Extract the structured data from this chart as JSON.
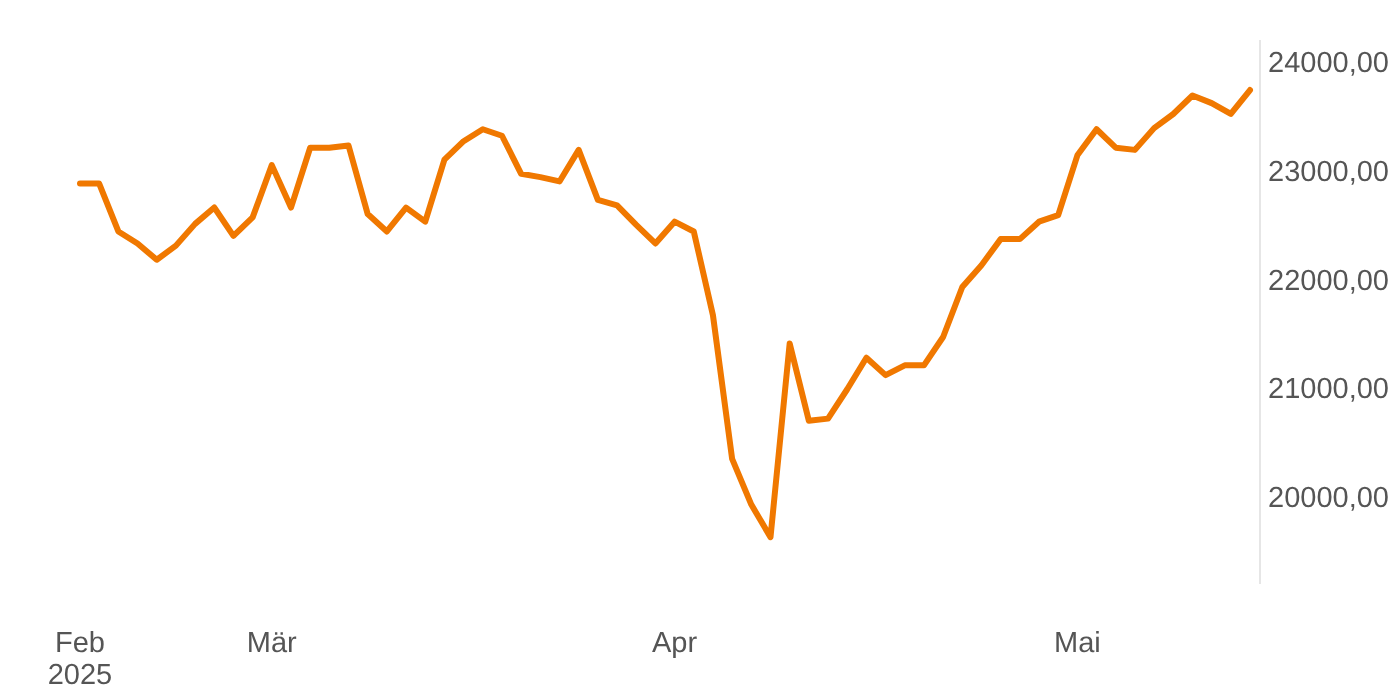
{
  "chart_data": {
    "type": "line",
    "categories": [
      "Feb\n2025",
      null,
      null,
      null,
      null,
      null,
      null,
      null,
      null,
      null,
      "Mär",
      null,
      null,
      null,
      null,
      null,
      null,
      null,
      null,
      null,
      null,
      null,
      null,
      null,
      null,
      null,
      null,
      null,
      null,
      null,
      null,
      "Apr",
      null,
      null,
      null,
      null,
      null,
      null,
      null,
      null,
      null,
      null,
      null,
      null,
      null,
      null,
      null,
      null,
      null,
      null,
      null,
      null,
      "Mai",
      null,
      null,
      null,
      null,
      null,
      null,
      null,
      null,
      null
    ],
    "series": [
      {
        "color": "#f07800",
        "values": [
          22880,
          22880,
          22440,
          22330,
          22180,
          22310,
          22510,
          22660,
          22400,
          22570,
          23050,
          22660,
          23210,
          23210,
          23230,
          22600,
          22440,
          22660,
          22530,
          23100,
          23270,
          23380,
          23320,
          22970,
          22940,
          22900,
          23190,
          22730,
          22680,
          22500,
          22330,
          22530,
          22440,
          21670,
          20350,
          19930,
          19630,
          21410,
          20700,
          20720,
          20990,
          21280,
          21120,
          21210,
          21210,
          21470,
          21930,
          22130,
          22370,
          22370,
          22530,
          22590,
          23140,
          23380,
          23210,
          23190,
          23390,
          23520,
          23690,
          23620,
          23520,
          23740
        ]
      }
    ],
    "yticks": [
      {
        "value": 20000,
        "label": "20000,00"
      },
      {
        "value": 21000,
        "label": "21000,00"
      },
      {
        "value": 22000,
        "label": "22000,00"
      },
      {
        "value": 23000,
        "label": "23000,00"
      },
      {
        "value": 24000,
        "label": "24000,00"
      }
    ],
    "ylim": [
      19200,
      24200
    ],
    "marker": "none",
    "line_style": "solid"
  }
}
